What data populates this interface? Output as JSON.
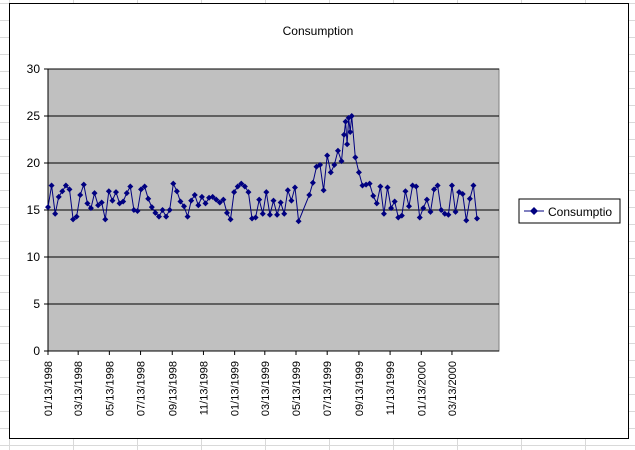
{
  "chart_data": {
    "type": "line",
    "title": "Consumption",
    "xlabel": "",
    "ylabel": "",
    "ylim": [
      0,
      30
    ],
    "yticks": [
      0,
      5,
      10,
      15,
      20,
      25,
      30
    ],
    "x_range": [
      "01/13/1998",
      "06/13/2000"
    ],
    "xtick_labels": [
      "01/13/1998",
      "03/13/1998",
      "05/13/1998",
      "07/13/1998",
      "09/13/1998",
      "11/13/1998",
      "01/13/1999",
      "03/13/1999",
      "05/13/1999",
      "07/13/1999",
      "09/13/1999",
      "11/13/1999",
      "01/13/2000",
      "03/13/2000"
    ],
    "grid": "horizontal",
    "legend_position": "right",
    "colors": {
      "series": "#000080",
      "plot_background": "#c0c0c0",
      "gridline": "#000000"
    },
    "series": [
      {
        "name": "Consumptio",
        "marker": "diamond",
        "points": [
          [
            "01/13/1998",
            15.3
          ],
          [
            "01/20/1998",
            17.6
          ],
          [
            "01/27/1998",
            14.6
          ],
          [
            "02/03/1998",
            16.4
          ],
          [
            "02/10/1998",
            17.0
          ],
          [
            "02/17/1998",
            17.6
          ],
          [
            "02/24/1998",
            17.2
          ],
          [
            "03/03/1998",
            14.0
          ],
          [
            "03/10/1998",
            14.3
          ],
          [
            "03/17/1998",
            16.6
          ],
          [
            "03/24/1998",
            17.7
          ],
          [
            "03/31/1998",
            15.7
          ],
          [
            "04/07/1998",
            15.2
          ],
          [
            "04/14/1998",
            16.8
          ],
          [
            "04/21/1998",
            15.5
          ],
          [
            "04/28/1998",
            15.8
          ],
          [
            "05/05/1998",
            14.0
          ],
          [
            "05/12/1998",
            17.0
          ],
          [
            "05/19/1998",
            16.0
          ],
          [
            "05/26/1998",
            16.9
          ],
          [
            "06/02/1998",
            15.7
          ],
          [
            "06/09/1998",
            15.9
          ],
          [
            "06/16/1998",
            16.8
          ],
          [
            "06/23/1998",
            17.5
          ],
          [
            "06/30/1998",
            15.0
          ],
          [
            "07/07/1998",
            14.9
          ],
          [
            "07/14/1998",
            17.2
          ],
          [
            "07/21/1998",
            17.5
          ],
          [
            "07/28/1998",
            16.2
          ],
          [
            "08/04/1998",
            15.3
          ],
          [
            "08/11/1998",
            14.7
          ],
          [
            "08/18/1998",
            14.3
          ],
          [
            "08/25/1998",
            15.0
          ],
          [
            "09/01/1998",
            14.3
          ],
          [
            "09/08/1998",
            15.0
          ],
          [
            "09/15/1998",
            17.8
          ],
          [
            "09/22/1998",
            17.0
          ],
          [
            "09/29/1998",
            15.9
          ],
          [
            "10/06/1998",
            15.4
          ],
          [
            "10/13/1998",
            14.3
          ],
          [
            "10/20/1998",
            16.0
          ],
          [
            "10/27/1998",
            16.6
          ],
          [
            "11/03/1998",
            15.5
          ],
          [
            "11/10/1998",
            16.4
          ],
          [
            "11/17/1998",
            15.7
          ],
          [
            "11/24/1998",
            16.3
          ],
          [
            "12/01/1998",
            16.4
          ],
          [
            "12/08/1998",
            16.1
          ],
          [
            "12/15/1998",
            15.8
          ],
          [
            "12/22/1998",
            16.1
          ],
          [
            "12/29/1998",
            14.7
          ],
          [
            "01/05/1999",
            14.0
          ],
          [
            "01/12/1999",
            16.9
          ],
          [
            "01/19/1999",
            17.5
          ],
          [
            "01/26/1999",
            17.8
          ],
          [
            "02/02/1999",
            17.5
          ],
          [
            "02/09/1999",
            16.9
          ],
          [
            "02/16/1999",
            14.1
          ],
          [
            "02/23/1999",
            14.2
          ],
          [
            "03/02/1999",
            16.1
          ],
          [
            "03/09/1999",
            14.6
          ],
          [
            "03/16/1999",
            16.9
          ],
          [
            "03/23/1999",
            14.5
          ],
          [
            "03/30/1999",
            16.0
          ],
          [
            "04/06/1999",
            14.5
          ],
          [
            "04/13/1999",
            15.8
          ],
          [
            "04/20/1999",
            14.6
          ],
          [
            "04/27/1999",
            17.1
          ],
          [
            "05/04/1999",
            16.0
          ],
          [
            "05/11/1999",
            17.4
          ],
          [
            "05/18/1999",
            13.8
          ],
          [
            "06/08/1999",
            16.6
          ],
          [
            "06/15/1999",
            17.9
          ],
          [
            "06/22/1999",
            19.6
          ],
          [
            "06/29/1999",
            19.8
          ],
          [
            "07/06/1999",
            17.1
          ],
          [
            "07/13/1999",
            20.8
          ],
          [
            "07/20/1999",
            19.0
          ],
          [
            "07/27/1999",
            19.8
          ],
          [
            "08/03/1999",
            21.3
          ],
          [
            "08/10/1999",
            20.2
          ],
          [
            "08/15/1999",
            23.0
          ],
          [
            "08/18/1999",
            24.4
          ],
          [
            "08/21/1999",
            22.0
          ],
          [
            "08/24/1999",
            24.8
          ],
          [
            "08/27/1999",
            23.3
          ],
          [
            "08/30/1999",
            25.0
          ],
          [
            "09/06/1999",
            20.6
          ],
          [
            "09/13/1999",
            19.0
          ],
          [
            "09/20/1999",
            17.6
          ],
          [
            "09/27/1999",
            17.7
          ],
          [
            "10/04/1999",
            17.8
          ],
          [
            "10/11/1999",
            16.5
          ],
          [
            "10/18/1999",
            15.7
          ],
          [
            "10/25/1999",
            17.5
          ],
          [
            "11/01/1999",
            14.6
          ],
          [
            "11/08/1999",
            17.4
          ],
          [
            "11/15/1999",
            15.2
          ],
          [
            "11/22/1999",
            15.9
          ],
          [
            "11/29/1999",
            14.2
          ],
          [
            "12/06/1999",
            14.4
          ],
          [
            "12/13/1999",
            17.0
          ],
          [
            "12/20/1999",
            15.4
          ],
          [
            "12/27/1999",
            17.6
          ],
          [
            "01/03/2000",
            17.5
          ],
          [
            "01/10/2000",
            14.2
          ],
          [
            "01/17/2000",
            15.2
          ],
          [
            "01/24/2000",
            16.1
          ],
          [
            "01/31/2000",
            14.8
          ],
          [
            "02/07/2000",
            17.2
          ],
          [
            "02/14/2000",
            17.6
          ],
          [
            "02/21/2000",
            15.0
          ],
          [
            "02/28/2000",
            14.6
          ],
          [
            "03/06/2000",
            14.5
          ],
          [
            "03/13/2000",
            17.6
          ],
          [
            "03/20/2000",
            14.8
          ],
          [
            "03/27/2000",
            16.9
          ],
          [
            "04/03/2000",
            16.7
          ],
          [
            "04/10/2000",
            13.9
          ],
          [
            "04/17/2000",
            16.2
          ],
          [
            "04/24/2000",
            17.6
          ],
          [
            "05/01/2000",
            14.1
          ]
        ]
      }
    ]
  }
}
